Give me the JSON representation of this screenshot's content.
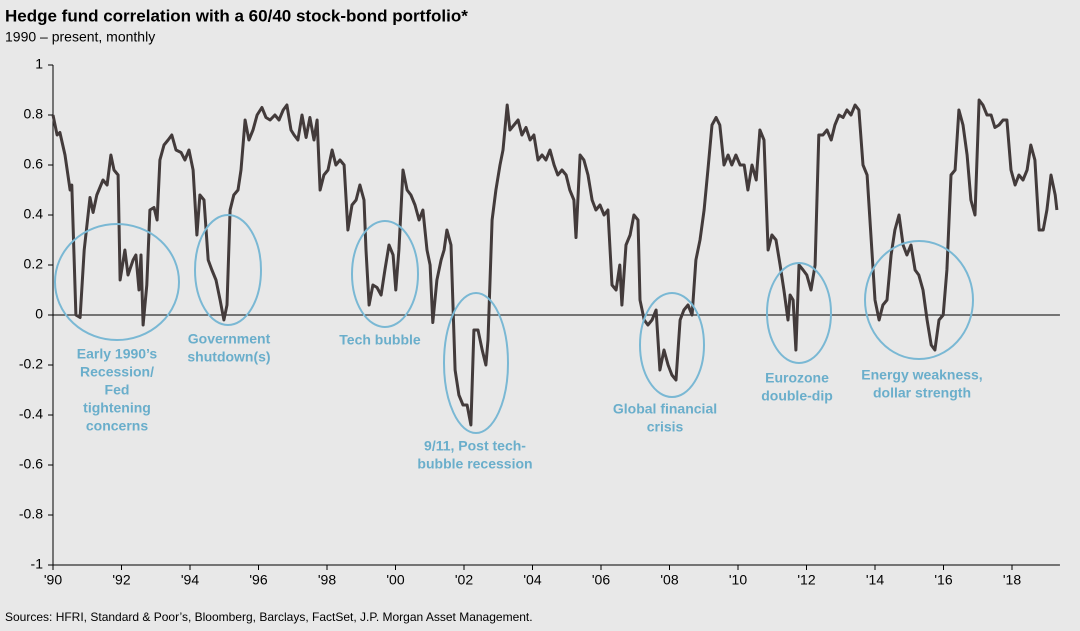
{
  "chart_data": {
    "type": "line",
    "title": "Hedge fund correlation with a 60/40 stock-bond portfolio*",
    "subtitle": "1990 – present, monthly",
    "source": "Sources: HFRI, Standard & Poor’s, Bloomberg, Barclays, FactSet, J.P. Morgan Asset Management.",
    "color": "#433b3b",
    "annotations": [
      [
        "Early 1990’s",
        "Recession/",
        "Fed",
        "tightening",
        "concerns"
      ],
      [
        "Government",
        "shutdown(s)"
      ],
      [
        "Tech bubble"
      ],
      [
        "9/11, Post tech-",
        "bubble recession"
      ],
      [
        "Global financial",
        "crisis"
      ],
      [
        "Eurozone",
        "double-dip"
      ],
      [
        "Energy weakness,",
        "dollar strength"
      ]
    ],
    "xlim": [
      1990,
      2019.4
    ],
    "xticks": [
      {
        "value": 1990,
        "label": "'90"
      },
      {
        "value": 1992,
        "label": "'92"
      },
      {
        "value": 1994,
        "label": "'94"
      },
      {
        "value": 1996,
        "label": "'96"
      },
      {
        "value": 1998,
        "label": "'98"
      },
      {
        "value": 2000,
        "label": "'00"
      },
      {
        "value": 2002,
        "label": "'02"
      },
      {
        "value": 2004,
        "label": "'04"
      },
      {
        "value": 2006,
        "label": "'06"
      },
      {
        "value": 2008,
        "label": "'08"
      },
      {
        "value": 2010,
        "label": "'10"
      },
      {
        "value": 2012,
        "label": "'12"
      },
      {
        "value": 2014,
        "label": "'14"
      },
      {
        "value": 2016,
        "label": "'16"
      },
      {
        "value": 2018,
        "label": "'18"
      }
    ],
    "ylim": [
      -1,
      1
    ],
    "yticks": [
      1,
      0.8,
      0.6,
      0.4,
      0.2,
      0,
      -0.2,
      -0.4,
      -0.6,
      -0.8,
      -1
    ],
    "x": [
      1990.0,
      1990.12,
      1990.2,
      1990.35,
      1990.5,
      1990.55,
      1990.67,
      1990.79,
      1990.91,
      1991.08,
      1991.17,
      1991.28,
      1991.46,
      1991.58,
      1991.69,
      1991.78,
      1991.9,
      1991.96,
      1992.1,
      1992.19,
      1992.34,
      1992.42,
      1992.51,
      1992.57,
      1992.63,
      1992.74,
      1992.83,
      1992.95,
      1993.04,
      1993.12,
      1993.24,
      1993.36,
      1993.47,
      1993.59,
      1993.74,
      1993.85,
      1993.97,
      1994.09,
      1994.2,
      1994.29,
      1994.41,
      1994.53,
      1994.64,
      1994.76,
      1994.88,
      1994.99,
      1995.08,
      1995.17,
      1995.28,
      1995.4,
      1995.49,
      1995.61,
      1995.72,
      1995.84,
      1995.96,
      1996.1,
      1996.22,
      1996.34,
      1996.48,
      1996.6,
      1996.72,
      1996.83,
      1996.95,
      1997.04,
      1997.15,
      1997.27,
      1997.39,
      1997.5,
      1997.62,
      1997.71,
      1997.8,
      1997.91,
      1998.03,
      1998.15,
      1998.26,
      1998.38,
      1998.5,
      1998.61,
      1998.73,
      1998.85,
      1998.96,
      1999.08,
      1999.14,
      1999.23,
      1999.34,
      1999.46,
      1999.58,
      1999.69,
      1999.81,
      1999.93,
      2000.01,
      2000.1,
      2000.22,
      2000.34,
      2000.45,
      2000.57,
      2000.69,
      2000.8,
      2000.92,
      2001.01,
      2001.09,
      2001.21,
      2001.33,
      2001.42,
      2001.5,
      2001.62,
      2001.74,
      2001.85,
      2001.97,
      2002.09,
      2002.2,
      2002.29,
      2002.41,
      2002.53,
      2002.64,
      2002.7,
      2002.82,
      2002.93,
      2003.05,
      2003.14,
      2003.26,
      2003.34,
      2003.46,
      2003.58,
      2003.69,
      2003.81,
      2003.93,
      2004.04,
      2004.16,
      2004.28,
      2004.39,
      2004.51,
      2004.63,
      2004.74,
      2004.86,
      2004.98,
      2005.09,
      2005.21,
      2005.27,
      2005.39,
      2005.5,
      2005.62,
      2005.74,
      2005.85,
      2005.97,
      2006.09,
      2006.2,
      2006.32,
      2006.44,
      2006.55,
      2006.61,
      2006.73,
      2006.85,
      2006.96,
      2007.08,
      2007.14,
      2007.26,
      2007.37,
      2007.49,
      2007.61,
      2007.72,
      2007.84,
      2007.96,
      2008.07,
      2008.19,
      2008.31,
      2008.42,
      2008.54,
      2008.66,
      2008.77,
      2008.89,
      2009.01,
      2009.12,
      2009.24,
      2009.36,
      2009.47,
      2009.59,
      2009.71,
      2009.82,
      2009.94,
      2010.06,
      2010.18,
      2010.29,
      2010.41,
      2010.53,
      2010.64,
      2010.76,
      2010.88,
      2010.99,
      2011.11,
      2011.23,
      2011.34,
      2011.46,
      2011.52,
      2011.61,
      2011.69,
      2011.78,
      2011.9,
      2012.01,
      2012.13,
      2012.25,
      2012.36,
      2012.48,
      2012.6,
      2012.72,
      2012.83,
      2012.95,
      2013.07,
      2013.18,
      2013.3,
      2013.42,
      2013.53,
      2013.65,
      2013.77,
      2013.88,
      2014.0,
      2014.12,
      2014.23,
      2014.35,
      2014.47,
      2014.58,
      2014.7,
      2014.82,
      2014.93,
      2015.05,
      2015.17,
      2015.28,
      2015.4,
      2015.52,
      2015.64,
      2015.75,
      2015.87,
      2015.99,
      2016.1,
      2016.22,
      2016.34,
      2016.45,
      2016.57,
      2016.69,
      2016.8,
      2016.92,
      2017.04,
      2017.15,
      2017.27,
      2017.39,
      2017.5,
      2017.62,
      2017.74,
      2017.85,
      2017.97,
      2018.09,
      2018.2,
      2018.32,
      2018.44,
      2018.55,
      2018.67,
      2018.79,
      2018.91,
      2019.02,
      2019.14,
      2019.26,
      2019.31
    ],
    "values": [
      0.8,
      0.72,
      0.73,
      0.64,
      0.5,
      0.52,
      0,
      -0.01,
      0.26,
      0.47,
      0.41,
      0.48,
      0.54,
      0.52,
      0.64,
      0.58,
      0.56,
      0.14,
      0.26,
      0.16,
      0.22,
      0.24,
      0.1,
      0.24,
      -0.04,
      0.12,
      0.42,
      0.43,
      0.38,
      0.62,
      0.68,
      0.7,
      0.72,
      0.66,
      0.65,
      0.62,
      0.66,
      0.58,
      0.32,
      0.48,
      0.46,
      0.22,
      0.18,
      0.14,
      0.06,
      -0.02,
      0.04,
      0.42,
      0.48,
      0.5,
      0.58,
      0.78,
      0.7,
      0.74,
      0.8,
      0.83,
      0.79,
      0.78,
      0.8,
      0.78,
      0.82,
      0.84,
      0.74,
      0.72,
      0.7,
      0.8,
      0.71,
      0.79,
      0.7,
      0.78,
      0.5,
      0.56,
      0.58,
      0.66,
      0.6,
      0.62,
      0.6,
      0.34,
      0.44,
      0.46,
      0.52,
      0.46,
      0.26,
      0.04,
      0.12,
      0.11,
      0.08,
      0.18,
      0.28,
      0.24,
      0.1,
      0.26,
      0.58,
      0.5,
      0.48,
      0.44,
      0.38,
      0.42,
      0.26,
      0.2,
      -0.03,
      0.14,
      0.22,
      0.26,
      0.34,
      0.28,
      -0.22,
      -0.32,
      -0.36,
      -0.36,
      -0.44,
      -0.06,
      -0.06,
      -0.14,
      -0.2,
      -0.1,
      0.38,
      0.5,
      0.6,
      0.66,
      0.84,
      0.74,
      0.76,
      0.78,
      0.72,
      0.75,
      0.7,
      0.72,
      0.62,
      0.64,
      0.62,
      0.66,
      0.6,
      0.56,
      0.58,
      0.56,
      0.5,
      0.46,
      0.31,
      0.64,
      0.62,
      0.56,
      0.46,
      0.42,
      0.44,
      0.4,
      0.42,
      0.12,
      0.1,
      0.2,
      0.04,
      0.28,
      0.32,
      0.4,
      0.38,
      0.06,
      -0.02,
      -0.04,
      -0.02,
      0.02,
      -0.22,
      -0.14,
      -0.2,
      -0.24,
      -0.26,
      -0.02,
      0.02,
      0.04,
      0,
      0.22,
      0.3,
      0.42,
      0.58,
      0.76,
      0.79,
      0.76,
      0.6,
      0.64,
      0.6,
      0.64,
      0.6,
      0.6,
      0.5,
      0.6,
      0.54,
      0.74,
      0.7,
      0.26,
      0.32,
      0.3,
      0.2,
      0.1,
      -0.02,
      0.08,
      0.06,
      -0.14,
      0.2,
      0.18,
      0.16,
      0.1,
      0.2,
      0.72,
      0.72,
      0.74,
      0.7,
      0.76,
      0.8,
      0.79,
      0.82,
      0.8,
      0.84,
      0.82,
      0.6,
      0.56,
      0.32,
      0.06,
      -0.02,
      0.04,
      0.06,
      0.24,
      0.34,
      0.4,
      0.28,
      0.24,
      0.28,
      0.18,
      0.16,
      0.1,
      -0.02,
      -0.12,
      -0.14,
      -0.02,
      0,
      0.18,
      0.56,
      0.58,
      0.82,
      0.76,
      0.64,
      0.46,
      0.4,
      0.86,
      0.84,
      0.8,
      0.8,
      0.75,
      0.76,
      0.78,
      0.78,
      0.58,
      0.52,
      0.56,
      0.54,
      0.58,
      0.68,
      0.62,
      0.34,
      0.34,
      0.42,
      0.56,
      0.48,
      0.42
    ]
  }
}
